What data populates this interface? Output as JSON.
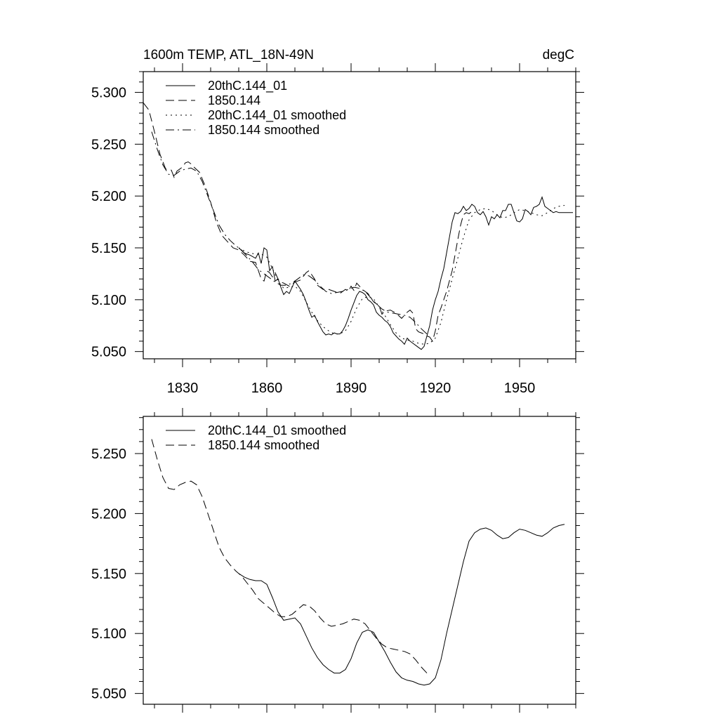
{
  "chart_data": [
    {
      "type": "line",
      "title": "1600m TEMP, ATL_18N-49N",
      "units": "degC",
      "xlabel": "",
      "ylabel": "",
      "xlim": [
        1816,
        1970
      ],
      "ylim": [
        5.043,
        5.32
      ],
      "x_ticks": [
        "1830",
        "1860",
        "1890",
        "1920",
        "1950"
      ],
      "y_ticks": [
        "5.050",
        "5.100",
        "5.150",
        "5.200",
        "5.250",
        "5.300"
      ],
      "legend": "top-left",
      "grid": false,
      "series": [
        {
          "name": "20thC.144_01",
          "dash": "solid",
          "x": [
            1850,
            1852,
            1854,
            1856,
            1857,
            1858,
            1859,
            1860,
            1861,
            1862,
            1863,
            1864,
            1865,
            1866,
            1867,
            1868,
            1869,
            1870,
            1871,
            1872,
            1873,
            1874,
            1875,
            1876,
            1877,
            1878,
            1879,
            1880,
            1881,
            1882,
            1883,
            1884,
            1885,
            1886,
            1887,
            1888,
            1889,
            1890,
            1891,
            1892,
            1893,
            1894,
            1895,
            1896,
            1897,
            1898,
            1899,
            1900,
            1901,
            1902,
            1903,
            1904,
            1905,
            1906,
            1907,
            1908,
            1909,
            1910,
            1911,
            1912,
            1913,
            1914,
            1915,
            1916,
            1917,
            1918,
            1919,
            1920,
            1921,
            1922,
            1923,
            1924,
            1925,
            1926,
            1927,
            1928,
            1929,
            1930,
            1931,
            1932,
            1933,
            1934,
            1935,
            1936,
            1937,
            1938,
            1939,
            1940,
            1941,
            1942,
            1943,
            1944,
            1945,
            1946,
            1947,
            1948,
            1949,
            1950,
            1951,
            1952,
            1953,
            1954,
            1955,
            1956,
            1957,
            1958,
            1959,
            1960,
            1961,
            1962,
            1963,
            1964,
            1965,
            1966,
            1967,
            1968,
            1969
          ],
          "y": [
            5.15,
            5.145,
            5.143,
            5.14,
            5.145,
            5.135,
            5.15,
            5.148,
            5.128,
            5.132,
            5.118,
            5.12,
            5.112,
            5.105,
            5.108,
            5.106,
            5.112,
            5.118,
            5.114,
            5.11,
            5.105,
            5.098,
            5.09,
            5.083,
            5.085,
            5.079,
            5.074,
            5.069,
            5.066,
            5.067,
            5.066,
            5.068,
            5.067,
            5.067,
            5.07,
            5.075,
            5.082,
            5.09,
            5.097,
            5.104,
            5.108,
            5.107,
            5.105,
            5.1,
            5.098,
            5.095,
            5.088,
            5.085,
            5.083,
            5.08,
            5.078,
            5.074,
            5.068,
            5.065,
            5.062,
            5.06,
            5.057,
            5.063,
            5.06,
            5.058,
            5.056,
            5.054,
            5.052,
            5.055,
            5.065,
            5.075,
            5.09,
            5.1,
            5.108,
            5.12,
            5.13,
            5.145,
            5.16,
            5.175,
            5.184,
            5.183,
            5.185,
            5.19,
            5.186,
            5.188,
            5.192,
            5.19,
            5.184,
            5.182,
            5.185,
            5.18,
            5.172,
            5.18,
            5.178,
            5.182,
            5.179,
            5.186,
            5.186,
            5.192,
            5.192,
            5.184,
            5.176,
            5.175,
            5.178,
            5.187,
            5.185,
            5.182,
            5.189,
            5.19,
            5.192,
            5.199,
            5.19,
            5.188,
            5.186,
            5.184,
            5.185,
            5.184,
            5.184,
            5.184,
            5.184,
            5.184,
            5.184
          ]
        },
        {
          "name": "1850.144",
          "dash": "dashed",
          "x": [
            1816,
            1818,
            1820,
            1822,
            1824,
            1826,
            1827,
            1828,
            1829,
            1830,
            1831,
            1832,
            1833,
            1834,
            1836,
            1838,
            1840,
            1842,
            1844,
            1846,
            1848,
            1850,
            1852,
            1854,
            1856,
            1857,
            1858,
            1859,
            1860,
            1861,
            1862,
            1863,
            1864,
            1865,
            1866,
            1868,
            1870,
            1872,
            1874,
            1875,
            1876,
            1877,
            1878,
            1880,
            1882,
            1884,
            1886,
            1888,
            1889,
            1890,
            1891,
            1892,
            1893,
            1894,
            1896,
            1898,
            1900,
            1901,
            1902,
            1904,
            1906,
            1908,
            1909,
            1910,
            1911,
            1912,
            1913,
            1914,
            1915,
            1916,
            1917,
            1918,
            1919,
            1920,
            1921,
            1922,
            1923,
            1924,
            1925,
            1926,
            1927,
            1928,
            1929,
            1930,
            1931,
            1932,
            1933,
            1934
          ],
          "y": [
            5.29,
            5.283,
            5.262,
            5.24,
            5.226,
            5.225,
            5.218,
            5.224,
            5.226,
            5.228,
            5.232,
            5.233,
            5.231,
            5.228,
            5.223,
            5.21,
            5.194,
            5.175,
            5.162,
            5.156,
            5.15,
            5.148,
            5.143,
            5.137,
            5.136,
            5.128,
            5.12,
            5.118,
            5.128,
            5.126,
            5.122,
            5.126,
            5.12,
            5.117,
            5.116,
            5.113,
            5.117,
            5.119,
            5.126,
            5.128,
            5.124,
            5.12,
            5.114,
            5.11,
            5.11,
            5.108,
            5.106,
            5.11,
            5.108,
            5.113,
            5.109,
            5.116,
            5.113,
            5.11,
            5.106,
            5.098,
            5.094,
            5.086,
            5.089,
            5.09,
            5.087,
            5.082,
            5.085,
            5.088,
            5.09,
            5.087,
            5.072,
            5.069,
            5.068,
            5.067,
            5.065,
            5.064,
            5.06,
            5.07,
            5.085,
            5.092,
            5.1,
            5.108,
            5.118,
            5.128,
            5.143,
            5.158,
            5.172,
            5.182,
            5.184,
            5.183,
            5.185,
            5.186
          ]
        },
        {
          "name": "20thC.144_01 smoothed",
          "dash": "dotted",
          "x": [
            1850,
            1852,
            1854,
            1856,
            1858,
            1860,
            1862,
            1864,
            1866,
            1868,
            1870,
            1872,
            1874,
            1876,
            1878,
            1880,
            1882,
            1884,
            1886,
            1888,
            1890,
            1892,
            1894,
            1896,
            1898,
            1900,
            1902,
            1904,
            1906,
            1908,
            1910,
            1912,
            1914,
            1916,
            1918,
            1920,
            1922,
            1924,
            1926,
            1928,
            1930,
            1932,
            1934,
            1936,
            1938,
            1940,
            1942,
            1944,
            1946,
            1948,
            1950,
            1952,
            1954,
            1956,
            1958,
            1960,
            1962,
            1964,
            1966
          ],
          "y": [
            5.15,
            5.147,
            5.145,
            5.144,
            5.144,
            5.141,
            5.13,
            5.118,
            5.111,
            5.112,
            5.113,
            5.108,
            5.098,
            5.088,
            5.08,
            5.074,
            5.07,
            5.067,
            5.067,
            5.07,
            5.079,
            5.092,
            5.101,
            5.103,
            5.101,
            5.093,
            5.085,
            5.076,
            5.068,
            5.063,
            5.061,
            5.06,
            5.058,
            5.057,
            5.058,
            5.063,
            5.078,
            5.1,
            5.12,
            5.14,
            5.16,
            5.177,
            5.184,
            5.187,
            5.188,
            5.186,
            5.182,
            5.179,
            5.18,
            5.184,
            5.187,
            5.186,
            5.184,
            5.182,
            5.181,
            5.184,
            5.188,
            5.19,
            5.191
          ]
        },
        {
          "name": "1850.144 smoothed",
          "dash": "dashdot",
          "x": [
            1819,
            1821,
            1823,
            1825,
            1827,
            1829,
            1831,
            1833,
            1835,
            1837,
            1839,
            1841,
            1843,
            1845,
            1847,
            1849,
            1851,
            1853,
            1855,
            1857,
            1859,
            1861,
            1863,
            1865,
            1867,
            1869,
            1871,
            1873,
            1875,
            1877,
            1879,
            1881,
            1883,
            1885,
            1887,
            1889,
            1891,
            1893,
            1895,
            1897,
            1899,
            1901,
            1903,
            1905,
            1907,
            1909,
            1911,
            1913,
            1915,
            1917
          ],
          "y": [
            5.262,
            5.245,
            5.23,
            5.221,
            5.22,
            5.224,
            5.226,
            5.227,
            5.224,
            5.214,
            5.2,
            5.186,
            5.172,
            5.163,
            5.157,
            5.152,
            5.148,
            5.142,
            5.136,
            5.129,
            5.125,
            5.121,
            5.117,
            5.114,
            5.114,
            5.116,
            5.12,
            5.124,
            5.123,
            5.119,
            5.113,
            5.108,
            5.106,
            5.107,
            5.108,
            5.11,
            5.112,
            5.111,
            5.108,
            5.102,
            5.096,
            5.091,
            5.088,
            5.087,
            5.086,
            5.085,
            5.083,
            5.078,
            5.072,
            5.067
          ]
        }
      ]
    },
    {
      "type": "line",
      "title": "",
      "xlabel": "",
      "ylabel": "",
      "xlim": [
        1816,
        1970
      ],
      "ylim": [
        5.041,
        5.281
      ],
      "x_ticks": [],
      "y_ticks": [
        "5.050",
        "5.100",
        "5.150",
        "5.200",
        "5.250"
      ],
      "legend": "top-left",
      "grid": false,
      "series": [
        {
          "name": "20thC.144_01 smoothed",
          "dash": "solid",
          "x": [
            1850,
            1852,
            1854,
            1856,
            1858,
            1860,
            1862,
            1864,
            1866,
            1868,
            1870,
            1872,
            1874,
            1876,
            1878,
            1880,
            1882,
            1884,
            1886,
            1888,
            1890,
            1892,
            1894,
            1896,
            1898,
            1900,
            1902,
            1904,
            1906,
            1908,
            1910,
            1912,
            1914,
            1916,
            1918,
            1920,
            1922,
            1924,
            1926,
            1928,
            1930,
            1932,
            1934,
            1936,
            1938,
            1940,
            1942,
            1944,
            1946,
            1948,
            1950,
            1952,
            1954,
            1956,
            1958,
            1960,
            1962,
            1964,
            1966
          ],
          "y": [
            5.15,
            5.147,
            5.145,
            5.144,
            5.144,
            5.141,
            5.13,
            5.118,
            5.111,
            5.112,
            5.113,
            5.108,
            5.098,
            5.088,
            5.08,
            5.074,
            5.07,
            5.067,
            5.067,
            5.07,
            5.079,
            5.092,
            5.101,
            5.103,
            5.101,
            5.093,
            5.085,
            5.076,
            5.068,
            5.063,
            5.061,
            5.06,
            5.058,
            5.057,
            5.058,
            5.063,
            5.078,
            5.1,
            5.12,
            5.14,
            5.16,
            5.177,
            5.184,
            5.187,
            5.188,
            5.186,
            5.182,
            5.179,
            5.18,
            5.184,
            5.187,
            5.186,
            5.184,
            5.182,
            5.181,
            5.184,
            5.188,
            5.19,
            5.191
          ]
        },
        {
          "name": "1850.144 smoothed",
          "dash": "dashed",
          "x": [
            1819,
            1821,
            1823,
            1825,
            1827,
            1829,
            1831,
            1833,
            1835,
            1837,
            1839,
            1841,
            1843,
            1845,
            1847,
            1849,
            1851,
            1853,
            1855,
            1857,
            1859,
            1861,
            1863,
            1865,
            1867,
            1869,
            1871,
            1873,
            1875,
            1877,
            1879,
            1881,
            1883,
            1885,
            1887,
            1889,
            1891,
            1893,
            1895,
            1897,
            1899,
            1901,
            1903,
            1905,
            1907,
            1909,
            1911,
            1913,
            1915,
            1917
          ],
          "y": [
            5.262,
            5.245,
            5.23,
            5.221,
            5.22,
            5.224,
            5.226,
            5.227,
            5.224,
            5.214,
            5.2,
            5.186,
            5.172,
            5.163,
            5.157,
            5.152,
            5.148,
            5.142,
            5.136,
            5.129,
            5.125,
            5.121,
            5.117,
            5.114,
            5.114,
            5.116,
            5.12,
            5.124,
            5.123,
            5.119,
            5.113,
            5.108,
            5.106,
            5.107,
            5.108,
            5.11,
            5.112,
            5.111,
            5.108,
            5.102,
            5.096,
            5.091,
            5.088,
            5.087,
            5.086,
            5.085,
            5.083,
            5.078,
            5.072,
            5.067
          ]
        }
      ]
    }
  ]
}
